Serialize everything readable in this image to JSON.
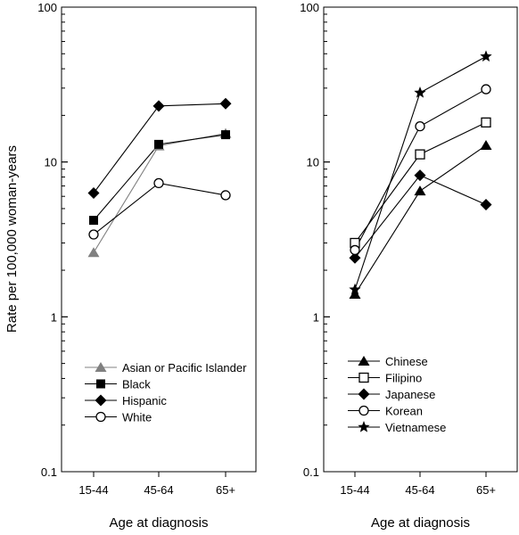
{
  "chart_data": {
    "type": "line",
    "ylabel": "Rate per 100,000 woman-years",
    "xlabel": "Age at diagnosis",
    "y_scale": "log",
    "ylim": [
      0.1,
      100
    ],
    "y_ticks": [
      "0.1",
      "1",
      "10",
      "100"
    ],
    "categories": [
      "15-44",
      "45-64",
      "65+"
    ],
    "grid": false,
    "panels": [
      {
        "legend_position": "bottom-left",
        "series": [
          {
            "name": "Asian or Pacific Islander",
            "marker": "triangle",
            "color": "#808080",
            "values": [
              2.6,
              12.7,
              15.3
            ]
          },
          {
            "name": "Black",
            "marker": "square",
            "color": "#000000",
            "values": [
              4.2,
              13.0,
              15.0
            ]
          },
          {
            "name": "Hispanic",
            "marker": "diamond",
            "color": "#000000",
            "values": [
              6.3,
              23.0,
              23.8
            ]
          },
          {
            "name": "White",
            "marker": "circle-open",
            "color": "#000000",
            "values": [
              3.4,
              7.3,
              6.1
            ]
          }
        ]
      },
      {
        "legend_position": "bottom-left",
        "series": [
          {
            "name": "Chinese",
            "marker": "triangle",
            "color": "#000000",
            "values": [
              1.4,
              6.5,
              12.8
            ]
          },
          {
            "name": "Filipino",
            "marker": "square-open",
            "color": "#000000",
            "values": [
              3.0,
              11.2,
              18.0
            ]
          },
          {
            "name": "Japanese",
            "marker": "diamond",
            "color": "#000000",
            "values": [
              2.4,
              8.2,
              5.3
            ]
          },
          {
            "name": "Korean",
            "marker": "circle-open",
            "color": "#000000",
            "values": [
              2.7,
              17.0,
              29.5
            ]
          },
          {
            "name": "Vietnamese",
            "marker": "star",
            "color": "#000000",
            "values": [
              1.5,
              28.0,
              48.0
            ]
          }
        ]
      }
    ]
  }
}
